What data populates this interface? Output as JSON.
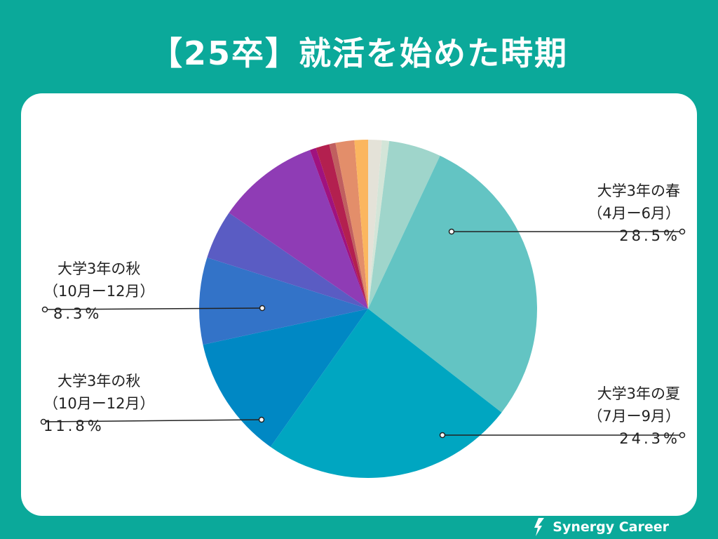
{
  "title": "【25卒】就活を始めた時期",
  "brand": "Synergy Career",
  "chart_data": {
    "type": "pie",
    "title": "【25卒】就活を始めた時期",
    "start_angle_deg": 0,
    "direction": "clockwise",
    "slices": [
      {
        "name": "",
        "value": 1.3,
        "color": "#e4e2d8"
      },
      {
        "name": "",
        "value": 0.7,
        "color": "#d3e5d8"
      },
      {
        "name": "",
        "value": 5.0,
        "color": "#9fd5cb"
      },
      {
        "name": "大学3年の春（4月ー6月）",
        "value": 28.5,
        "color": "#63c4c3"
      },
      {
        "name": "大学3年の夏（7月ー9月）",
        "value": 24.3,
        "color": "#00a6c1"
      },
      {
        "name": "大学3年の秋（10月ー12月）",
        "value": 11.8,
        "color": "#0088c4"
      },
      {
        "name": "大学3年の秋（10月ー12月）",
        "value": 8.3,
        "color": "#3373c8"
      },
      {
        "name": "",
        "value": 4.7,
        "color": "#5a5cc3"
      },
      {
        "name": "",
        "value": 9.8,
        "color": "#8f3cb5"
      },
      {
        "name": "",
        "value": 0.6,
        "color": "#a0127f"
      },
      {
        "name": "",
        "value": 1.3,
        "color": "#b3204f"
      },
      {
        "name": "",
        "value": 0.6,
        "color": "#c05f5f"
      },
      {
        "name": "",
        "value": 1.8,
        "color": "#e38e6a"
      },
      {
        "name": "",
        "value": 1.3,
        "color": "#fbb65f"
      }
    ],
    "labels": [
      {
        "line1": "大学3年の春",
        "line2": "（4月ー6月）",
        "pct": "28.5%"
      },
      {
        "line1": "大学3年の夏",
        "line2": "（7月ー9月）",
        "pct": "24.3%"
      },
      {
        "line1": "大学3年の秋",
        "line2": "（10月ー12月）",
        "pct": "11.8%"
      },
      {
        "line1": "大学3年の秋",
        "line2": "（10月ー12月）",
        "pct": "8.3%"
      }
    ]
  }
}
